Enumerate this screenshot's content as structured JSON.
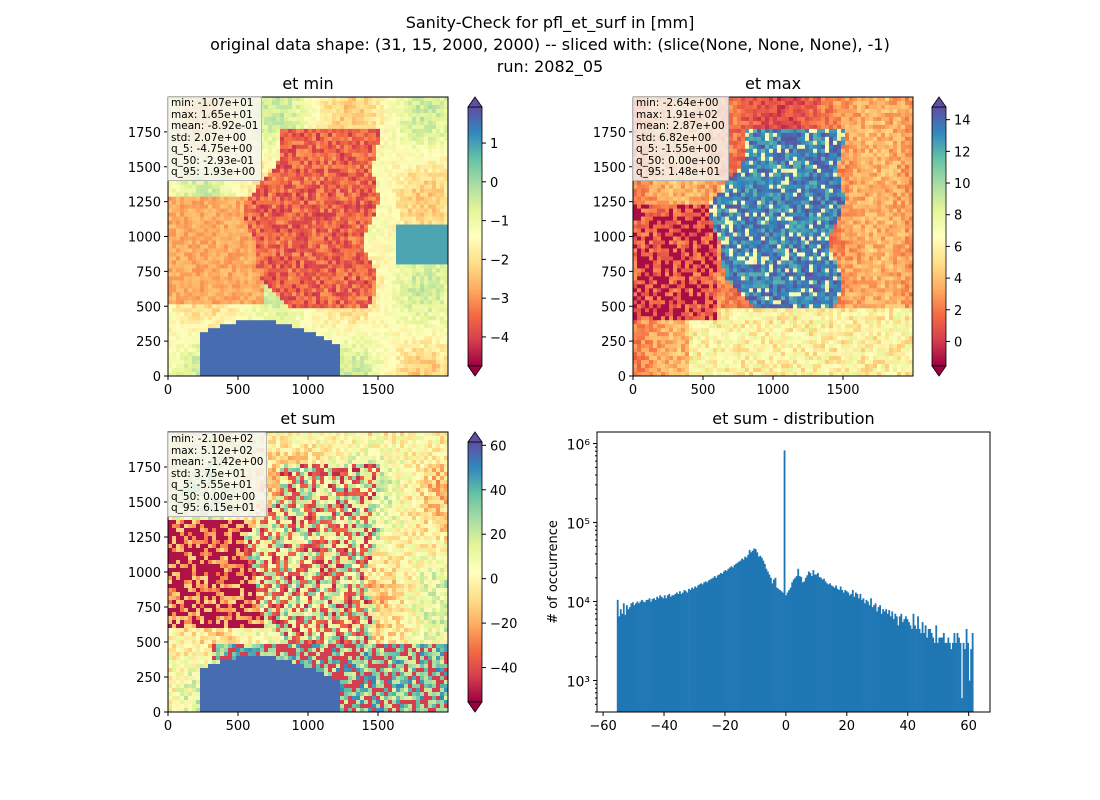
{
  "figure": {
    "title_line1": "Sanity-Check for pfl_et_surf in [mm]",
    "title_line2": "original data shape: (31, 15, 2000, 2000) -- sliced with: (slice(None, None, None), -1)",
    "title_line3": "run: 2082_05"
  },
  "chart_data": [
    {
      "type": "heatmap",
      "title": "et min",
      "xticks": [
        0,
        500,
        1000,
        1500
      ],
      "yticks": [
        0,
        250,
        500,
        750,
        1000,
        1250,
        1500,
        1750
      ],
      "xlim": [
        0,
        2000
      ],
      "ylim": [
        0,
        2000
      ],
      "colorbar": {
        "cmap": "Spectral",
        "vmin": -4.75,
        "vmax": 1.93,
        "ticks": [
          1,
          0,
          -1,
          -2,
          -3,
          -4
        ]
      },
      "stats": [
        "min: -1.07e+01",
        "max: 1.65e+01",
        "mean: -8.92e-01",
        "std: 2.07e+00",
        "q_5: -4.75e+00",
        "q_50: -2.93e-01",
        "q_95: 1.93e+00"
      ]
    },
    {
      "type": "heatmap",
      "title": "et max",
      "xticks": [
        0,
        500,
        1000,
        1500
      ],
      "yticks": [
        0,
        250,
        500,
        750,
        1000,
        1250,
        1500,
        1750
      ],
      "xlim": [
        0,
        2000
      ],
      "ylim": [
        0,
        2000
      ],
      "colorbar": {
        "cmap": "Spectral",
        "vmin": -1.55,
        "vmax": 14.8,
        "ticks": [
          14,
          12,
          10,
          8,
          6,
          4,
          2,
          0
        ]
      },
      "stats": [
        "min: -2.64e+00",
        "max: 1.91e+02",
        "mean: 2.87e+00",
        "std: 6.82e+00",
        "q_5: -1.55e+00",
        "q_50: 0.00e+00",
        "q_95: 1.48e+01"
      ]
    },
    {
      "type": "heatmap",
      "title": "et sum",
      "xticks": [
        0,
        500,
        1000,
        1500
      ],
      "yticks": [
        0,
        250,
        500,
        750,
        1000,
        1250,
        1500,
        1750
      ],
      "xlim": [
        0,
        2000
      ],
      "ylim": [
        0,
        2000
      ],
      "colorbar": {
        "cmap": "Spectral",
        "vmin": -55.5,
        "vmax": 61.5,
        "ticks": [
          60,
          40,
          20,
          0,
          -20,
          -40
        ]
      },
      "stats": [
        "min: -2.10e+02",
        "max: 5.12e+02",
        "mean: -1.42e+00",
        "std: 3.75e+01",
        "q_5: -5.55e+01",
        "q_50: 0.00e+00",
        "q_95: 6.15e+01"
      ]
    },
    {
      "type": "bar",
      "title": "et sum - distribution",
      "ylabel": "# of occurrence",
      "xlabel": "",
      "yscale": "log",
      "xlim": [
        -62,
        67
      ],
      "ylim": [
        400,
        1400000
      ],
      "xticks": [
        -60,
        -40,
        -20,
        0,
        20,
        40,
        60
      ],
      "yticks": [
        {
          "value": 1000,
          "label": "10³"
        },
        {
          "value": 10000,
          "label": "10⁴"
        },
        {
          "value": 100000,
          "label": "10⁵"
        },
        {
          "value": 1000000,
          "label": "10⁶"
        }
      ],
      "color": "#1f77b4",
      "bins": {
        "start": -55.5,
        "end": 61.5
      },
      "values": [
        10500,
        6500,
        8000,
        7000,
        9500,
        6800,
        9000,
        8000,
        8500,
        9500,
        9800,
        9000,
        9500,
        10000,
        9500,
        10000,
        10500,
        10000,
        9800,
        10500,
        10500,
        11000,
        10000,
        10800,
        11000,
        10500,
        11500,
        11000,
        12000,
        11500,
        11000,
        12000,
        11000,
        12000,
        12500,
        11500,
        12000,
        12000,
        12500,
        13000,
        12500,
        13500,
        12500,
        13000,
        14000,
        13500,
        13000,
        14500,
        14000,
        15000,
        14500,
        15500,
        15000,
        16000,
        16500,
        17000,
        16500,
        17500,
        18000,
        17500,
        18500,
        19000,
        19500,
        20000,
        21000,
        20000,
        21500,
        22000,
        23000,
        22500,
        24000,
        25000,
        24500,
        26000,
        27000,
        28000,
        27000,
        29000,
        30000,
        31000,
        32000,
        33000,
        35000,
        34000,
        37000,
        36000,
        39000,
        45000,
        42000,
        44000,
        47000,
        46000,
        42000,
        37000,
        38000,
        36000,
        33000,
        30000,
        26000,
        24000,
        22000,
        20000,
        17000,
        19000,
        20000,
        15000,
        14500,
        14000,
        13500,
        13000,
        820000,
        12000,
        13000,
        14000,
        15000,
        17500,
        19000,
        20000,
        21000,
        26000,
        21000,
        20500,
        17500,
        18000,
        20000,
        21500,
        24000,
        23000,
        21000,
        25000,
        22000,
        22000,
        23000,
        20500,
        20000,
        19000,
        19500,
        18000,
        17000,
        16500,
        17000,
        16000,
        15500,
        15000,
        16000,
        14500,
        14000,
        15500,
        14000,
        13000,
        14000,
        13500,
        13000,
        12000,
        12500,
        14000,
        11500,
        13000,
        12500,
        11000,
        12500,
        10500,
        11000,
        9500,
        10500,
        10000,
        9000,
        11000,
        8500,
        9000,
        9500,
        7500,
        8500,
        9000,
        7000,
        8000,
        7500,
        8000,
        7000,
        7800,
        6500,
        7500,
        6000,
        7000,
        6500,
        5000,
        6500,
        7000,
        5500,
        6000,
        6500,
        6000,
        5500,
        5000,
        4500,
        7000,
        5000,
        4500,
        6500,
        4500,
        4000,
        5500,
        4000,
        5000,
        3500,
        4500,
        4500,
        4000,
        3500,
        3000,
        5000,
        3000,
        3500,
        3500,
        3500,
        4000,
        3000,
        3000,
        3500,
        3000,
        2500,
        3000,
        4000,
        3000,
        4000,
        3500,
        3000,
        600,
        3000,
        2500,
        4500,
        3000,
        1000,
        2500,
        4000
      ]
    }
  ]
}
